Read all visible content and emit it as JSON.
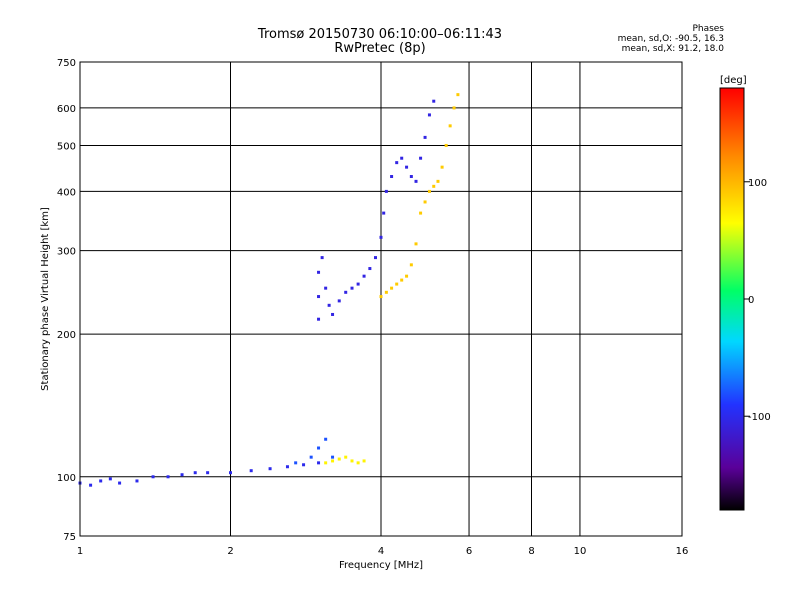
{
  "header": {
    "title_line1": "Tromsø 20150730 06:10:00–06:11:43",
    "title_line2": "RwPretec (8p)",
    "phases_title": "Phases",
    "phases_o": "mean, sd,O: -90.5, 16.3",
    "phases_x": "mean, sd,X:  91.2, 18.0"
  },
  "colorbar": {
    "label": "[deg]",
    "ticks": [
      "100",
      "0",
      "-100"
    ]
  },
  "chart_data": {
    "type": "scatter",
    "xlabel": "Frequency [MHz]",
    "ylabel": "Stationary phase Virtual Height [km]",
    "x_scale": "log2",
    "y_scale": "log",
    "xlim": [
      1,
      16
    ],
    "ylim": [
      75,
      750
    ],
    "x_ticks": [
      "1",
      "2",
      "4",
      "6",
      "8",
      "10",
      "16"
    ],
    "y_ticks": [
      "750",
      "600",
      "500",
      "400",
      "300",
      "200",
      "100",
      "75"
    ],
    "grid": true,
    "colorbar_range": [
      -180,
      180
    ],
    "series": [
      {
        "phase": -100,
        "points": [
          [
            1.0,
            97
          ],
          [
            1.05,
            96
          ],
          [
            1.1,
            98
          ],
          [
            1.15,
            99
          ],
          [
            1.2,
            97
          ],
          [
            1.3,
            98
          ],
          [
            1.4,
            100
          ],
          [
            1.5,
            100
          ],
          [
            1.6,
            101
          ],
          [
            1.7,
            102
          ],
          [
            1.8,
            102
          ],
          [
            2.0,
            102
          ],
          [
            2.2,
            103
          ],
          [
            2.4,
            104
          ],
          [
            2.6,
            105
          ],
          [
            2.8,
            106
          ],
          [
            3.0,
            107
          ]
        ]
      },
      {
        "phase": -80,
        "points": [
          [
            2.7,
            107
          ],
          [
            2.9,
            110
          ],
          [
            3.0,
            115
          ],
          [
            3.1,
            120
          ],
          [
            3.2,
            110
          ]
        ]
      },
      {
        "phase": 70,
        "points": [
          [
            3.1,
            107
          ],
          [
            3.2,
            108
          ],
          [
            3.3,
            109
          ],
          [
            3.4,
            110
          ],
          [
            3.5,
            108
          ],
          [
            3.6,
            107
          ],
          [
            3.7,
            108
          ]
        ]
      },
      {
        "phase": -105,
        "points": [
          [
            3.0,
            215
          ],
          [
            3.0,
            240
          ],
          [
            3.0,
            270
          ],
          [
            3.05,
            290
          ],
          [
            3.1,
            250
          ],
          [
            3.15,
            230
          ],
          [
            3.2,
            220
          ],
          [
            3.3,
            235
          ],
          [
            3.4,
            245
          ],
          [
            3.5,
            250
          ],
          [
            3.6,
            255
          ],
          [
            3.7,
            265
          ],
          [
            3.8,
            275
          ],
          [
            3.9,
            290
          ],
          [
            4.0,
            320
          ],
          [
            4.05,
            360
          ],
          [
            4.1,
            400
          ],
          [
            4.2,
            430
          ],
          [
            4.3,
            460
          ],
          [
            4.4,
            470
          ],
          [
            4.5,
            450
          ],
          [
            4.6,
            430
          ],
          [
            4.7,
            420
          ],
          [
            4.8,
            470
          ],
          [
            4.9,
            520
          ],
          [
            5.0,
            580
          ],
          [
            5.1,
            620
          ]
        ]
      },
      {
        "phase": 90,
        "points": [
          [
            4.0,
            240
          ],
          [
            4.1,
            245
          ],
          [
            4.2,
            250
          ],
          [
            4.3,
            255
          ],
          [
            4.4,
            260
          ],
          [
            4.5,
            265
          ],
          [
            4.6,
            280
          ],
          [
            4.7,
            310
          ],
          [
            4.8,
            360
          ],
          [
            4.9,
            380
          ],
          [
            5.0,
            400
          ],
          [
            5.1,
            410
          ],
          [
            5.2,
            420
          ],
          [
            5.3,
            450
          ],
          [
            5.4,
            500
          ],
          [
            5.5,
            550
          ],
          [
            5.6,
            600
          ],
          [
            5.7,
            640
          ]
        ]
      }
    ]
  }
}
